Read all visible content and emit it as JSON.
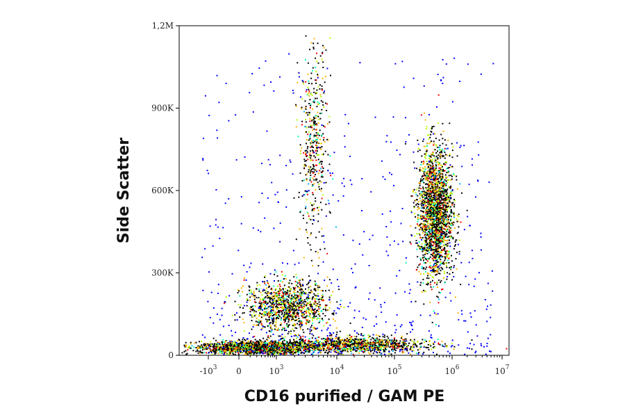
{
  "chart_data": {
    "type": "scatter",
    "subtype": "density-scatter",
    "title": "",
    "xlabel": "CD16 purified / GAM PE",
    "ylabel": "Side Scatter",
    "x_scale": "biexponential",
    "xlim": [
      -3000,
      10000000
    ],
    "ylim": [
      0,
      1200000
    ],
    "x_ticks": [
      {
        "value": -1000,
        "base": "-10",
        "exp": "3"
      },
      {
        "value": 0,
        "base": "0",
        "exp": ""
      },
      {
        "value": 1000,
        "base": "10",
        "exp": "3"
      },
      {
        "value": 10000,
        "base": "10",
        "exp": "4"
      },
      {
        "value": 100000,
        "base": "10",
        "exp": "5"
      },
      {
        "value": 1000000,
        "base": "10",
        "exp": "6"
      },
      {
        "value": 10000000,
        "base": "10",
        "exp": "7"
      }
    ],
    "y_ticks": [
      {
        "value": 0,
        "label": "0"
      },
      {
        "value": 300000,
        "label": "300K"
      },
      {
        "value": 600000,
        "label": "600K"
      },
      {
        "value": 900000,
        "label": "900K"
      },
      {
        "value": 1200000,
        "label": "1,2M"
      }
    ],
    "grid": false,
    "legend": "none",
    "colormap": [
      "#0000ff",
      "#00b4ff",
      "#00ffb4",
      "#b4ff00",
      "#ffb400",
      "#ff0000"
    ],
    "populations": [
      {
        "x_center": 300,
        "y_center": 30000,
        "x_spread_decades": 0.5,
        "y_spread": 12000,
        "density": "high"
      },
      {
        "x_center": 20000,
        "y_center": 40000,
        "x_spread_decades": 0.6,
        "y_spread": 15000,
        "density": "medium"
      },
      {
        "x_center": 1500,
        "y_center": 180000,
        "x_spread_decades": 0.35,
        "y_spread": 45000,
        "density": "medium"
      },
      {
        "x_center": 500000,
        "y_center": 520000,
        "x_spread_decades": 0.15,
        "y_spread": 120000,
        "density": "very-high"
      },
      {
        "x_center": 4000,
        "y_center": 780000,
        "x_spread_decades": 0.12,
        "y_spread": 180000,
        "density": "low"
      }
    ]
  }
}
